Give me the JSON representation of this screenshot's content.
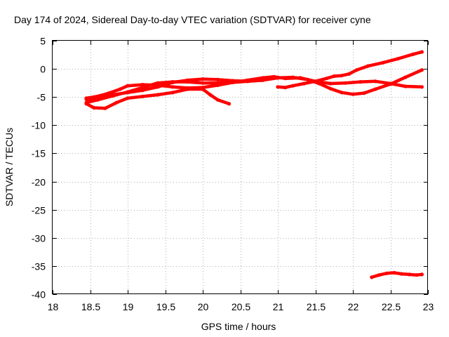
{
  "chart_data": {
    "type": "line",
    "title": "Day 174 of 2024, Sidereal Day-to-day VTEC variation (SDTVAR) for receiver cyne",
    "xlabel": "GPS time / hours",
    "ylabel": "SDTVAR / TECUs",
    "xlim": [
      18,
      23
    ],
    "ylim": [
      -40,
      5
    ],
    "xticks": [
      "18",
      "18.5",
      "19",
      "19.5",
      "20",
      "20.5",
      "21",
      "21.5",
      "22",
      "22.5",
      "23"
    ],
    "yticks": [
      "5",
      "0",
      "-5",
      "-10",
      "-15",
      "-20",
      "-25",
      "-30",
      "-35",
      "-40"
    ],
    "grid": true,
    "legend": "none",
    "color": "#ff0000",
    "series": [
      {
        "x": [
          18.45,
          18.55,
          18.65,
          18.75,
          18.9,
          19.0,
          19.2,
          19.4,
          19.6,
          19.8,
          20.0,
          20.2,
          20.4,
          20.6,
          20.8,
          20.95,
          21.1,
          21.3,
          21.5,
          21.65,
          21.75,
          21.85,
          21.95,
          22.05,
          22.2,
          22.4,
          22.6,
          22.8,
          22.92
        ],
        "y": [
          -5.2,
          -5.0,
          -4.7,
          -4.3,
          -3.6,
          -3.0,
          -2.8,
          -2.9,
          -3.2,
          -3.4,
          -3.3,
          -2.9,
          -2.4,
          -2.0,
          -1.6,
          -1.4,
          -1.7,
          -1.6,
          -2.2,
          -1.7,
          -1.3,
          -1.2,
          -0.9,
          -0.2,
          0.5,
          1.1,
          1.8,
          2.6,
          3.0
        ]
      },
      {
        "x": [
          18.45,
          18.6,
          18.8,
          19.0,
          19.2,
          19.4,
          19.6,
          19.8,
          20.0,
          20.2,
          20.4,
          20.6,
          20.8,
          21.0,
          21.2,
          21.4,
          21.55,
          21.7,
          21.85,
          22.0,
          22.15,
          22.3,
          22.5,
          22.7,
          22.92
        ],
        "y": [
          -5.4,
          -5.1,
          -4.6,
          -4.2,
          -3.8,
          -3.2,
          -2.4,
          -2.0,
          -1.8,
          -1.9,
          -2.1,
          -2.2,
          -2.0,
          -1.6,
          -1.5,
          -1.9,
          -2.6,
          -3.5,
          -4.2,
          -4.5,
          -4.3,
          -3.6,
          -2.7,
          -1.5,
          -0.2
        ]
      },
      {
        "x": [
          18.45,
          18.6,
          18.8,
          19.0,
          19.2,
          19.4,
          19.6,
          19.8,
          20.0,
          20.2,
          20.4,
          20.6,
          20.8
        ],
        "y": [
          -6.0,
          -5.5,
          -4.8,
          -4.1,
          -3.3,
          -2.5,
          -2.3,
          -2.3,
          -2.5,
          -2.5,
          -2.4,
          -2.2,
          -2.0
        ]
      },
      {
        "x": [
          18.45,
          18.55,
          18.7,
          18.85,
          19.0,
          19.2,
          19.4,
          19.6,
          19.8,
          20.0,
          20.1,
          20.2,
          20.35
        ],
        "y": [
          -6.2,
          -6.9,
          -7.0,
          -6.0,
          -5.2,
          -4.9,
          -4.6,
          -4.2,
          -3.6,
          -3.6,
          -4.6,
          -5.5,
          -6.2
        ]
      },
      {
        "x": [
          21.0,
          21.1,
          21.2,
          21.35,
          21.5,
          21.7,
          21.9,
          22.1,
          22.3,
          22.5,
          22.7,
          22.92
        ],
        "y": [
          -3.2,
          -3.3,
          -3.0,
          -2.6,
          -2.2,
          -2.6,
          -2.5,
          -2.3,
          -2.2,
          -2.6,
          -3.1,
          -3.2
        ]
      },
      {
        "x": [
          22.25,
          22.35,
          22.45,
          22.55,
          22.65,
          22.75,
          22.85,
          22.92
        ],
        "y": [
          -37.0,
          -36.6,
          -36.3,
          -36.2,
          -36.4,
          -36.5,
          -36.6,
          -36.5
        ]
      }
    ]
  }
}
